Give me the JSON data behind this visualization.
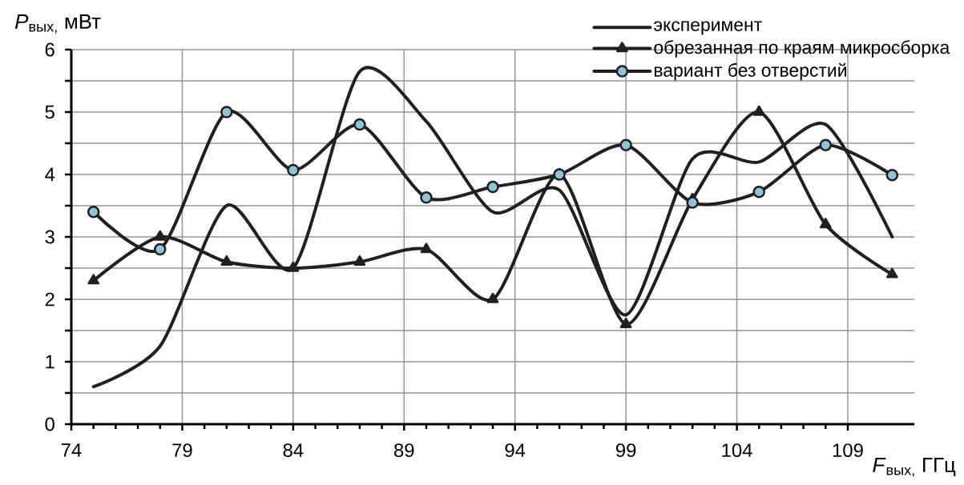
{
  "chart_data": {
    "type": "line",
    "xlabel": "*F*$_{вых,}$ ГГц",
    "ylabel": "*P*$_{вых,}$ мВт",
    "x": [
      75,
      78,
      81,
      84,
      87,
      90,
      93,
      96,
      99,
      102,
      105,
      108,
      111
    ],
    "series": [
      {
        "name": "эксперимент",
        "color": "#231f20",
        "marker": "none",
        "values": [
          0.6,
          1.25,
          3.5,
          2.5,
          5.65,
          4.85,
          3.4,
          3.75,
          1.75,
          4.25,
          4.2,
          4.8,
          3.0
        ]
      },
      {
        "name": "обрезанная по краям микросборка",
        "color": "#231f20",
        "marker": "triangle",
        "values": [
          2.3,
          3.0,
          2.6,
          2.5,
          2.6,
          2.8,
          2.0,
          4.0,
          1.6,
          3.6,
          5.0,
          3.2,
          2.4
        ]
      },
      {
        "name": "вариант без отверстий",
        "color": "#231f20",
        "marker": "circle",
        "colors": [
          "#8fc3d6",
          "#8fc3d6",
          "#8fc3d6",
          "#8fc3d6",
          "#8fc3d6",
          "#8fc3d6",
          "#8fc3d6",
          "#8fc3d6",
          "#8fc3d6",
          "#8fc3d6",
          "#8fc3d6",
          "#8fc3d6",
          "#8fc3d6"
        ],
        "values": [
          3.4,
          2.8,
          5.0,
          4.07,
          4.8,
          3.63,
          3.8,
          4.0,
          4.47,
          3.55,
          3.72,
          4.47,
          3.99
        ]
      }
    ],
    "xlim": [
      74,
      112
    ],
    "xticks": [
      74,
      79,
      84,
      89,
      94,
      99,
      104,
      109
    ],
    "ylim": [
      0,
      6
    ],
    "yticks": [
      0,
      {
        "value": 0.5,
        "label": null
      },
      1,
      {
        "value": 1.5,
        "label": null
      },
      2,
      {
        "value": 2.5,
        "label": null
      },
      3,
      {
        "value": 3.5,
        "label": null
      },
      4,
      {
        "value": 4.5,
        "label": null
      },
      5,
      {
        "value": 5.5,
        "label": null
      },
      6
    ],
    "grid": true,
    "legend": "top right",
    "line_style": "solid"
  }
}
